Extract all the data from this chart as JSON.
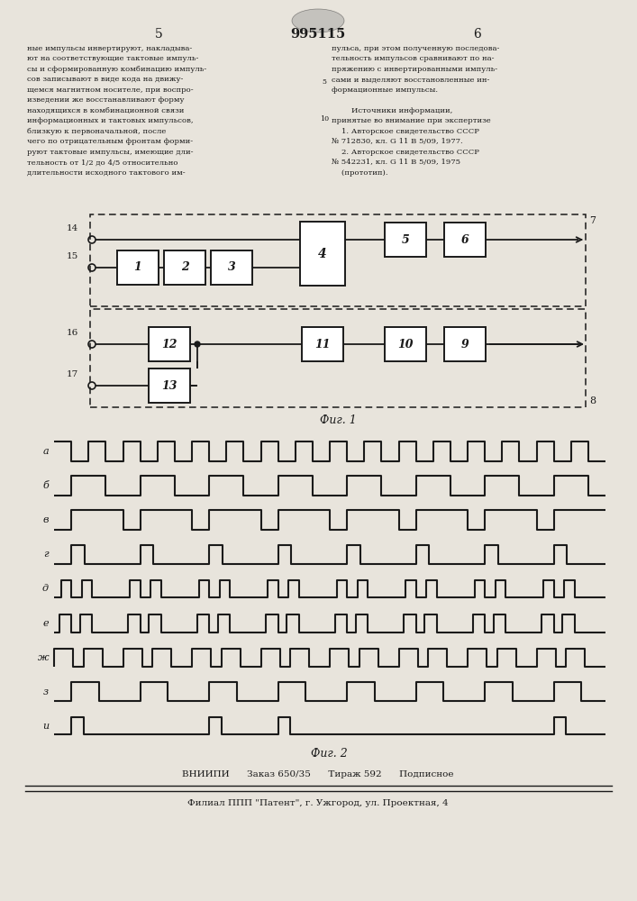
{
  "title": "995115",
  "page_left": "5",
  "page_right": "6",
  "text_left": "ные импульсы инвертируют, накладыва-\nют на соответствующие тактовые импуль-\nсы и сформированную комбинацию импуль-\nсов записывают в виде кода на движу-\nщемся магнитном носителе, при воспро-\nизведении же восстанавливают форму\nнаходящихся в комбинационной связи\nинформационных и тактовых импульсов,\nблизкую к первоначальной, после\nчего по отрицательным фронтам форми-\nруют тактовые импульсы, имеющие дли-\nтельность от 1/2 до 4/5 относительно\nдлительности исходного тактового им-",
  "text_right": "пульса, при этом полученную последова-\nтельность импульсов сравнивают по на-\nпряжению с инвертированными импуль-\nсами и выделяют восстановленные ин-\nформационные импульсы.\n\n        Источники информации,\nпринятые во внимание при экспертизе\n    1. Авторское свидетельство СССР\n№ 712830, кл. G 11 В 5/09, 1977.\n    2. Авторское свидетельство СССР\n№ 542231, кл. G 11 В 5/09, 1975\n    (прототип).",
  "line_num_5": "5",
  "line_num_10": "10",
  "fig1_label": "Фиг. 1",
  "fig2_label": "Фиг. 2",
  "footer_line1": "ВНИИПИ      Заказ 650/35      Тираж 592      Подписное",
  "footer_line2": "Филиал ППП \"Патент\", г. Ужгород, ул. Проектная, 4",
  "signal_labels": [
    "а",
    "б",
    "в",
    "г",
    "д",
    "е",
    "ж",
    "з",
    "и"
  ],
  "bg_color": "#e8e4dc",
  "line_color": "#1a1a1a",
  "wave_total": 16.0
}
